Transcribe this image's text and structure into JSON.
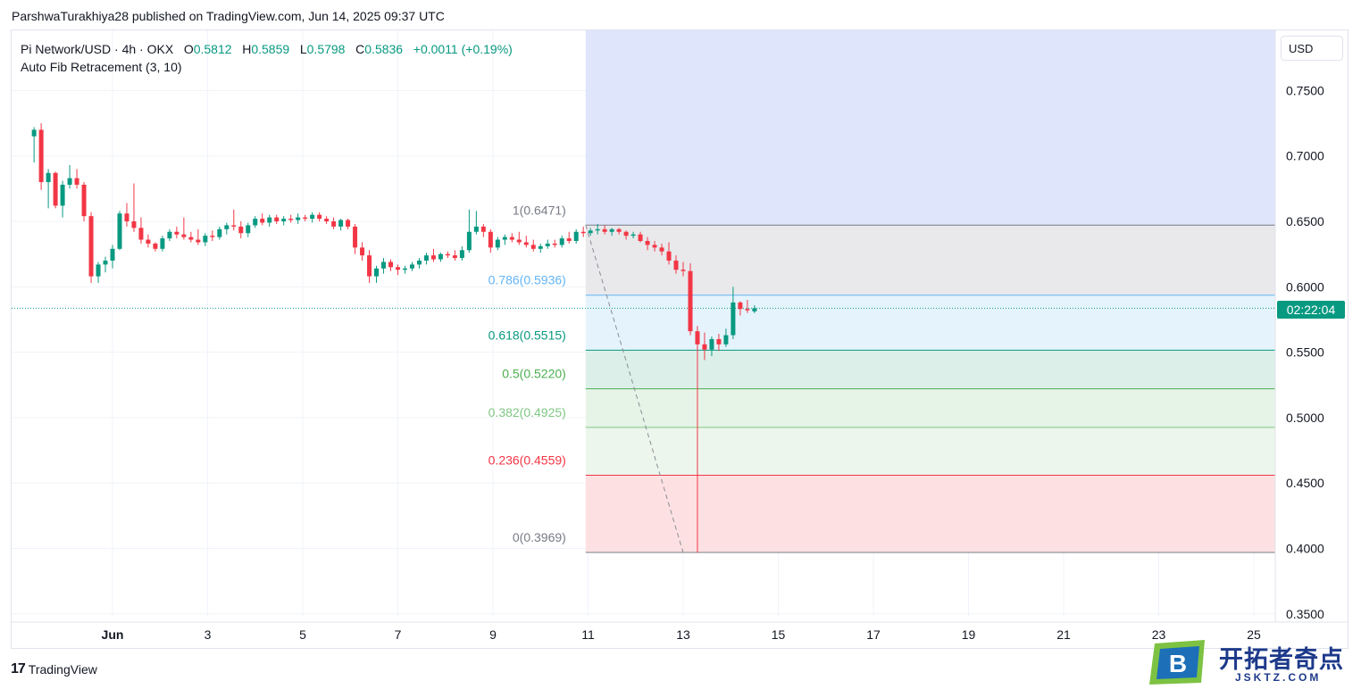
{
  "publish_line": "ParshwaTurakhiya28 published on TradingView.com, Jun 14, 2025 09:37 UTC",
  "legend": {
    "symbol": "Pi Network/USD · 4h · OKX",
    "open_label": "O",
    "open": "0.5812",
    "high_label": "H",
    "high": "0.5859",
    "low_label": "L",
    "low": "0.5798",
    "close_label": "C",
    "close": "0.5836",
    "change": "+0.0011 (+0.19%)",
    "indicator": "Auto Fib Retracement (3, 10)"
  },
  "currency_button": "USD",
  "countdown": "02:22:04",
  "footer_brand": "TradingView",
  "watermark": {
    "title": "开拓者奇点",
    "url": "JSKTZ.COM",
    "badge_letter": "B"
  },
  "colors": {
    "up": "#089981",
    "down": "#f23645",
    "grid": "#f0f3fa",
    "axis_text": "#131722"
  },
  "chart_data": {
    "type": "candlestick",
    "y_axis_ticks": [
      0.75,
      0.7,
      0.65,
      0.6,
      0.55,
      0.5,
      0.45,
      0.4,
      0.35
    ],
    "y_axis_labels": [
      "0.7500",
      "0.7000",
      "0.6500",
      "0.6000",
      "0.5500",
      "0.5000",
      "0.4500",
      "0.4000",
      "0.3500"
    ],
    "ylim": [
      0.3485,
      0.796
    ],
    "x_axis_labels": [
      "Jun",
      "3",
      "5",
      "7",
      "9",
      "11",
      "13",
      "15",
      "17",
      "19",
      "21",
      "23",
      "25"
    ],
    "x_axis_days": [
      1,
      3,
      5,
      7,
      9,
      11,
      13,
      15,
      17,
      19,
      21,
      23,
      25
    ],
    "last_price": 0.5836,
    "fib_levels": [
      {
        "label": "1(0.6471)",
        "value": 0.6471,
        "color": "#787b86"
      },
      {
        "label": "0.786(0.5936)",
        "value": 0.5936,
        "color": "#64b5f6"
      },
      {
        "label": "0.618(0.5515)",
        "value": 0.5515,
        "color": "#089981"
      },
      {
        "label": "0.5(0.5220)",
        "value": 0.522,
        "color": "#4caf50"
      },
      {
        "label": "0.382(0.4925)",
        "value": 0.4925,
        "color": "#81c784"
      },
      {
        "label": "0.236(0.4559)",
        "value": 0.4559,
        "color": "#f23645"
      },
      {
        "label": "0(0.3969)",
        "value": 0.3969,
        "color": "#787b86"
      }
    ],
    "fib_zones": [
      {
        "from": 0.796,
        "to": 0.6471,
        "color": "#dfe5fb"
      },
      {
        "from": 0.6471,
        "to": 0.5936,
        "color": "#e9e9ec"
      },
      {
        "from": 0.5936,
        "to": 0.5515,
        "color": "#e5f3fc"
      },
      {
        "from": 0.5515,
        "to": 0.522,
        "color": "#dcefe9"
      },
      {
        "from": 0.522,
        "to": 0.4925,
        "color": "#e6f4e7"
      },
      {
        "from": 0.4925,
        "to": 0.4559,
        "color": "#ecf6ed"
      },
      {
        "from": 0.4559,
        "to": 0.3969,
        "color": "#fde1e2"
      }
    ],
    "fib_start_day": 10.95,
    "trend_line": {
      "from_day": 10.95,
      "from_price": 0.6471,
      "to_day": 13.0,
      "to_price": 0.3969
    },
    "candle_interval_days": 0.1667,
    "candles": [
      {
        "t": 29.35,
        "o": 0.715,
        "h": 0.722,
        "l": 0.695,
        "c": 0.72
      },
      {
        "t": 29.5,
        "o": 0.72,
        "h": 0.725,
        "l": 0.674,
        "c": 0.68
      },
      {
        "t": 29.65,
        "o": 0.68,
        "h": 0.69,
        "l": 0.66,
        "c": 0.687
      },
      {
        "t": 29.8,
        "o": 0.687,
        "h": 0.688,
        "l": 0.66,
        "c": 0.662
      },
      {
        "t": 29.95,
        "o": 0.662,
        "h": 0.681,
        "l": 0.653,
        "c": 0.678
      },
      {
        "t": 30.1,
        "o": 0.678,
        "h": 0.693,
        "l": 0.675,
        "c": 0.683
      },
      {
        "t": 30.25,
        "o": 0.683,
        "h": 0.69,
        "l": 0.675,
        "c": 0.678
      },
      {
        "t": 30.4,
        "o": 0.678,
        "h": 0.68,
        "l": 0.65,
        "c": 0.654
      },
      {
        "t": 30.55,
        "o": 0.654,
        "h": 0.657,
        "l": 0.603,
        "c": 0.608
      },
      {
        "t": 30.7,
        "o": 0.608,
        "h": 0.619,
        "l": 0.603,
        "c": 0.617
      },
      {
        "t": 30.85,
        "o": 0.617,
        "h": 0.623,
        "l": 0.611,
        "c": 0.62
      },
      {
        "t": 31.0,
        "o": 0.62,
        "h": 0.632,
        "l": 0.614,
        "c": 0.629
      },
      {
        "t": 31.15,
        "o": 0.629,
        "h": 0.658,
        "l": 0.628,
        "c": 0.656
      },
      {
        "t": 31.3,
        "o": 0.656,
        "h": 0.664,
        "l": 0.646,
        "c": 0.65
      },
      {
        "t": 31.45,
        "o": 0.65,
        "h": 0.679,
        "l": 0.642,
        "c": 0.645
      },
      {
        "t": 31.6,
        "o": 0.645,
        "h": 0.653,
        "l": 0.633,
        "c": 0.636
      },
      {
        "t": 31.75,
        "o": 0.636,
        "h": 0.64,
        "l": 0.63,
        "c": 0.633
      },
      {
        "t": 31.9,
        "o": 0.633,
        "h": 0.634,
        "l": 0.627,
        "c": 0.629
      },
      {
        "t": 32.05,
        "o": 0.629,
        "h": 0.639,
        "l": 0.627,
        "c": 0.637
      },
      {
        "t": 32.2,
        "o": 0.637,
        "h": 0.644,
        "l": 0.635,
        "c": 0.642
      },
      {
        "t": 32.35,
        "o": 0.642,
        "h": 0.646,
        "l": 0.637,
        "c": 0.64
      },
      {
        "t": 32.5,
        "o": 0.64,
        "h": 0.653,
        "l": 0.636,
        "c": 0.638
      },
      {
        "t": 32.65,
        "o": 0.638,
        "h": 0.642,
        "l": 0.634,
        "c": 0.636
      },
      {
        "t": 32.8,
        "o": 0.636,
        "h": 0.644,
        "l": 0.632,
        "c": 0.634
      },
      {
        "t": 32.95,
        "o": 0.634,
        "h": 0.641,
        "l": 0.631,
        "c": 0.639
      },
      {
        "t": 33.1,
        "o": 0.639,
        "h": 0.643,
        "l": 0.635,
        "c": 0.638
      },
      {
        "t": 33.25,
        "o": 0.638,
        "h": 0.646,
        "l": 0.636,
        "c": 0.644
      },
      {
        "t": 33.4,
        "o": 0.644,
        "h": 0.649,
        "l": 0.64,
        "c": 0.647
      },
      {
        "t": 33.55,
        "o": 0.647,
        "h": 0.659,
        "l": 0.643,
        "c": 0.646
      },
      {
        "t": 33.7,
        "o": 0.646,
        "h": 0.65,
        "l": 0.637,
        "c": 0.641
      },
      {
        "t": 33.85,
        "o": 0.641,
        "h": 0.649,
        "l": 0.638,
        "c": 0.647
      },
      {
        "t": 34.0,
        "o": 0.647,
        "h": 0.654,
        "l": 0.645,
        "c": 0.652
      },
      {
        "t": 34.15,
        "o": 0.652,
        "h": 0.656,
        "l": 0.647,
        "c": 0.649
      },
      {
        "t": 34.3,
        "o": 0.649,
        "h": 0.655,
        "l": 0.646,
        "c": 0.653
      },
      {
        "t": 34.45,
        "o": 0.653,
        "h": 0.655,
        "l": 0.648,
        "c": 0.65
      },
      {
        "t": 34.6,
        "o": 0.65,
        "h": 0.654,
        "l": 0.647,
        "c": 0.652
      },
      {
        "t": 34.75,
        "o": 0.652,
        "h": 0.655,
        "l": 0.649,
        "c": 0.651
      },
      {
        "t": 34.9,
        "o": 0.651,
        "h": 0.656,
        "l": 0.648,
        "c": 0.653
      },
      {
        "t": 35.05,
        "o": 0.653,
        "h": 0.655,
        "l": 0.65,
        "c": 0.652
      },
      {
        "t": 35.2,
        "o": 0.652,
        "h": 0.657,
        "l": 0.649,
        "c": 0.655
      },
      {
        "t": 35.35,
        "o": 0.655,
        "h": 0.657,
        "l": 0.65,
        "c": 0.652
      },
      {
        "t": 35.5,
        "o": 0.652,
        "h": 0.654,
        "l": 0.648,
        "c": 0.65
      },
      {
        "t": 35.65,
        "o": 0.65,
        "h": 0.653,
        "l": 0.644,
        "c": 0.646
      },
      {
        "t": 35.8,
        "o": 0.646,
        "h": 0.652,
        "l": 0.643,
        "c": 0.651
      },
      {
        "t": 35.95,
        "o": 0.651,
        "h": 0.652,
        "l": 0.644,
        "c": 0.646
      },
      {
        "t": 36.1,
        "o": 0.646,
        "h": 0.648,
        "l": 0.625,
        "c": 0.63
      },
      {
        "t": 36.25,
        "o": 0.63,
        "h": 0.634,
        "l": 0.62,
        "c": 0.624
      },
      {
        "t": 36.4,
        "o": 0.624,
        "h": 0.628,
        "l": 0.603,
        "c": 0.608
      },
      {
        "t": 36.55,
        "o": 0.608,
        "h": 0.616,
        "l": 0.603,
        "c": 0.614
      },
      {
        "t": 36.7,
        "o": 0.614,
        "h": 0.622,
        "l": 0.61,
        "c": 0.619
      },
      {
        "t": 36.85,
        "o": 0.619,
        "h": 0.621,
        "l": 0.612,
        "c": 0.615
      },
      {
        "t": 37.0,
        "o": 0.615,
        "h": 0.617,
        "l": 0.609,
        "c": 0.613
      },
      {
        "t": 37.15,
        "o": 0.613,
        "h": 0.616,
        "l": 0.61,
        "c": 0.614
      },
      {
        "t": 37.3,
        "o": 0.614,
        "h": 0.619,
        "l": 0.612,
        "c": 0.617
      },
      {
        "t": 37.45,
        "o": 0.617,
        "h": 0.622,
        "l": 0.614,
        "c": 0.62
      },
      {
        "t": 37.6,
        "o": 0.62,
        "h": 0.626,
        "l": 0.617,
        "c": 0.624
      },
      {
        "t": 37.75,
        "o": 0.624,
        "h": 0.629,
        "l": 0.619,
        "c": 0.621
      },
      {
        "t": 37.9,
        "o": 0.621,
        "h": 0.626,
        "l": 0.619,
        "c": 0.625
      },
      {
        "t": 38.05,
        "o": 0.625,
        "h": 0.627,
        "l": 0.622,
        "c": 0.624
      },
      {
        "t": 38.2,
        "o": 0.624,
        "h": 0.628,
        "l": 0.62,
        "c": 0.622
      },
      {
        "t": 38.35,
        "o": 0.622,
        "h": 0.631,
        "l": 0.62,
        "c": 0.628
      },
      {
        "t": 38.5,
        "o": 0.628,
        "h": 0.659,
        "l": 0.626,
        "c": 0.642
      },
      {
        "t": 38.65,
        "o": 0.642,
        "h": 0.658,
        "l": 0.64,
        "c": 0.646
      },
      {
        "t": 38.8,
        "o": 0.646,
        "h": 0.648,
        "l": 0.638,
        "c": 0.642
      },
      {
        "t": 38.95,
        "o": 0.642,
        "h": 0.644,
        "l": 0.626,
        "c": 0.63
      },
      {
        "t": 39.1,
        "o": 0.63,
        "h": 0.638,
        "l": 0.628,
        "c": 0.636
      },
      {
        "t": 39.25,
        "o": 0.636,
        "h": 0.64,
        "l": 0.632,
        "c": 0.638
      },
      {
        "t": 39.4,
        "o": 0.638,
        "h": 0.641,
        "l": 0.634,
        "c": 0.636
      },
      {
        "t": 39.55,
        "o": 0.636,
        "h": 0.642,
        "l": 0.632,
        "c": 0.634
      },
      {
        "t": 39.7,
        "o": 0.634,
        "h": 0.639,
        "l": 0.63,
        "c": 0.632
      },
      {
        "t": 39.85,
        "o": 0.632,
        "h": 0.636,
        "l": 0.627,
        "c": 0.629
      },
      {
        "t": 40.0,
        "o": 0.629,
        "h": 0.633,
        "l": 0.626,
        "c": 0.631
      },
      {
        "t": 40.15,
        "o": 0.631,
        "h": 0.636,
        "l": 0.629,
        "c": 0.633
      },
      {
        "t": 40.3,
        "o": 0.633,
        "h": 0.636,
        "l": 0.63,
        "c": 0.632
      },
      {
        "t": 40.45,
        "o": 0.632,
        "h": 0.639,
        "l": 0.63,
        "c": 0.637
      },
      {
        "t": 40.6,
        "o": 0.637,
        "h": 0.642,
        "l": 0.633,
        "c": 0.635
      },
      {
        "t": 40.75,
        "o": 0.635,
        "h": 0.644,
        "l": 0.633,
        "c": 0.642
      },
      {
        "t": 40.9,
        "o": 0.642,
        "h": 0.646,
        "l": 0.638,
        "c": 0.641
      },
      {
        "t": 41.05,
        "o": 0.641,
        "h": 0.645,
        "l": 0.639,
        "c": 0.643
      },
      {
        "t": 41.2,
        "o": 0.643,
        "h": 0.648,
        "l": 0.64,
        "c": 0.644
      },
      {
        "t": 41.35,
        "o": 0.644,
        "h": 0.647,
        "l": 0.64,
        "c": 0.642
      },
      {
        "t": 41.5,
        "o": 0.642,
        "h": 0.645,
        "l": 0.639,
        "c": 0.644
      },
      {
        "t": 41.65,
        "o": 0.644,
        "h": 0.645,
        "l": 0.64,
        "c": 0.642
      },
      {
        "t": 41.8,
        "o": 0.642,
        "h": 0.643,
        "l": 0.636,
        "c": 0.639
      },
      {
        "t": 41.95,
        "o": 0.639,
        "h": 0.642,
        "l": 0.637,
        "c": 0.64
      },
      {
        "t": 42.1,
        "o": 0.64,
        "h": 0.642,
        "l": 0.634,
        "c": 0.635
      },
      {
        "t": 42.25,
        "o": 0.635,
        "h": 0.638,
        "l": 0.628,
        "c": 0.632
      },
      {
        "t": 42.4,
        "o": 0.632,
        "h": 0.635,
        "l": 0.627,
        "c": 0.63
      },
      {
        "t": 42.55,
        "o": 0.63,
        "h": 0.633,
        "l": 0.624,
        "c": 0.627
      },
      {
        "t": 42.7,
        "o": 0.627,
        "h": 0.634,
        "l": 0.617,
        "c": 0.62
      },
      {
        "t": 42.85,
        "o": 0.62,
        "h": 0.624,
        "l": 0.61,
        "c": 0.613
      },
      {
        "t": 43.0,
        "o": 0.613,
        "h": 0.619,
        "l": 0.608,
        "c": 0.612
      },
      {
        "t": 43.15,
        "o": 0.612,
        "h": 0.618,
        "l": 0.563,
        "c": 0.566
      },
      {
        "t": 43.3,
        "o": 0.566,
        "h": 0.57,
        "l": 0.3969,
        "c": 0.556
      },
      {
        "t": 43.45,
        "o": 0.556,
        "h": 0.565,
        "l": 0.544,
        "c": 0.552
      },
      {
        "t": 43.6,
        "o": 0.552,
        "h": 0.562,
        "l": 0.547,
        "c": 0.56
      },
      {
        "t": 43.75,
        "o": 0.56,
        "h": 0.564,
        "l": 0.551,
        "c": 0.556
      },
      {
        "t": 43.9,
        "o": 0.556,
        "h": 0.568,
        "l": 0.554,
        "c": 0.563
      },
      {
        "t": 44.05,
        "o": 0.563,
        "h": 0.6,
        "l": 0.56,
        "c": 0.588
      },
      {
        "t": 44.2,
        "o": 0.588,
        "h": 0.589,
        "l": 0.578,
        "c": 0.583
      },
      {
        "t": 44.35,
        "o": 0.583,
        "h": 0.59,
        "l": 0.58,
        "c": 0.582
      },
      {
        "t": 44.5,
        "o": 0.5812,
        "h": 0.5859,
        "l": 0.5798,
        "c": 0.5836
      }
    ]
  }
}
